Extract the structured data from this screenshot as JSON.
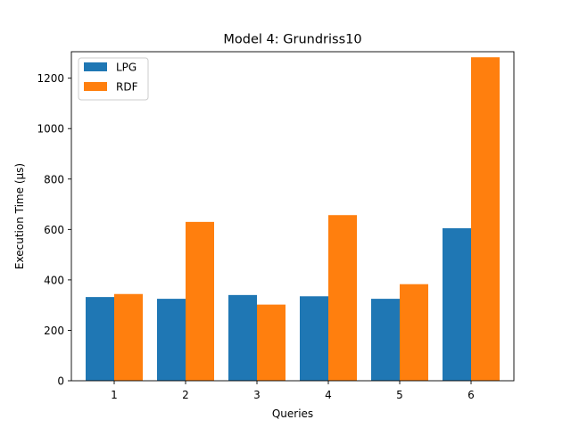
{
  "chart_data": {
    "type": "bar",
    "title": "Model 4: Grundriss10",
    "xlabel": "Queries",
    "ylabel": "Execution Time (µs)",
    "categories": [
      "1",
      "2",
      "3",
      "4",
      "5",
      "6"
    ],
    "series": [
      {
        "name": "LPG",
        "color": "#1f77b4",
        "values": [
          332,
          325,
          340,
          335,
          325,
          605
        ]
      },
      {
        "name": "RDF",
        "color": "#ff7f0e",
        "values": [
          344,
          630,
          302,
          657,
          383,
          1283
        ]
      }
    ],
    "ylim": [
      0,
      1305
    ],
    "yticks": [
      0,
      200,
      400,
      600,
      800,
      1000,
      1200
    ],
    "legend_position": "upper-left",
    "grid": false
  }
}
